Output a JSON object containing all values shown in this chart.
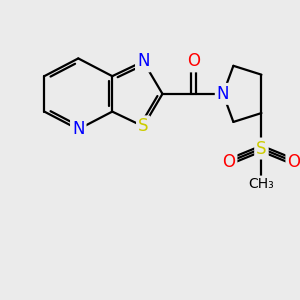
{
  "background_color": "#ebebeb",
  "atom_colors": {
    "C": "#000000",
    "N": "#0000ff",
    "O": "#ff0000",
    "S": "#cccc00",
    "H": "#000000"
  },
  "bond_color": "#000000",
  "bond_width": 1.6,
  "figsize": [
    3.0,
    3.0
  ],
  "dpi": 100,
  "xlim": [
    0,
    10
  ],
  "ylim": [
    0,
    10
  ]
}
